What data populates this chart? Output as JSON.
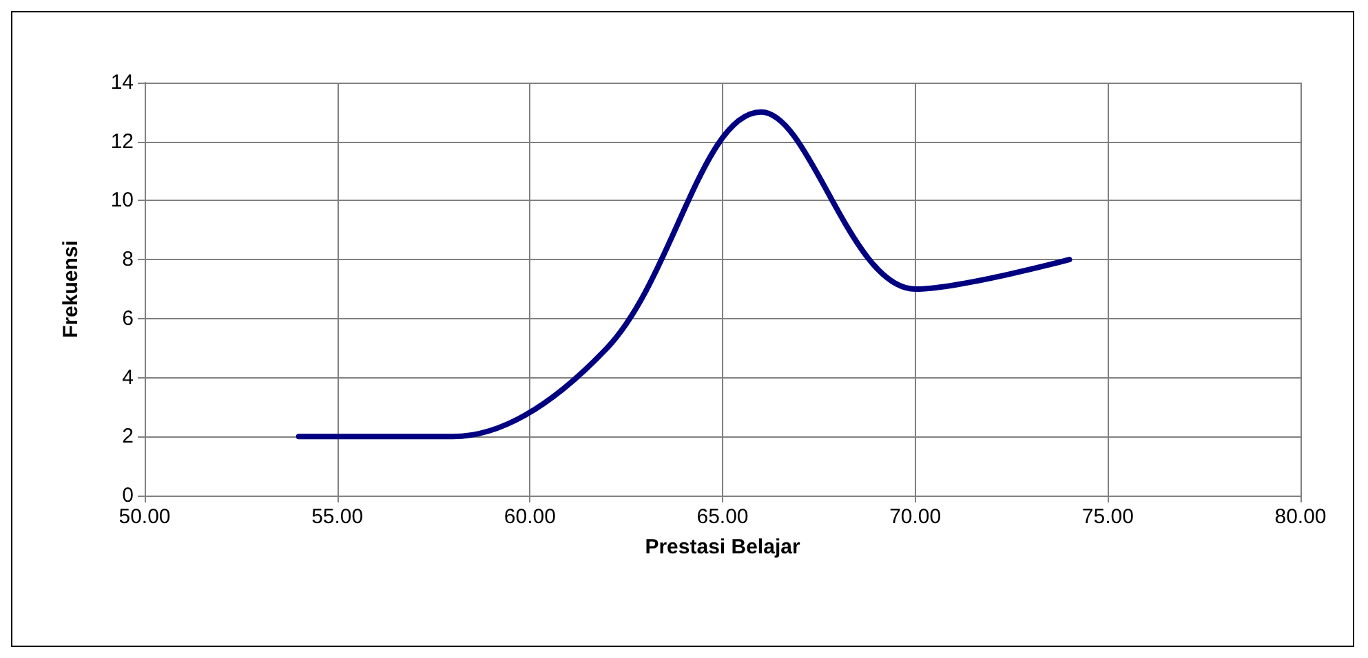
{
  "chart_data": {
    "type": "line",
    "xlabel": "Prestasi Belajar",
    "ylabel": "Frekuensi",
    "x": [
      54,
      58,
      62,
      66,
      70,
      74
    ],
    "series": [
      {
        "color": "#000080",
        "values": [
          2,
          2,
          5,
          13,
          7,
          8
        ]
      }
    ],
    "xlim": [
      50,
      80
    ],
    "xticks": [
      {
        "value": 50,
        "label": "50.00"
      },
      {
        "value": 55,
        "label": "55.00"
      },
      {
        "value": 60,
        "label": "60.00"
      },
      {
        "value": 65,
        "label": "65.00"
      },
      {
        "value": 70,
        "label": "70.00"
      },
      {
        "value": 75,
        "label": "75.00"
      },
      {
        "value": 80,
        "label": "80.00"
      }
    ],
    "ylim": [
      0,
      14
    ],
    "yticks": [
      0,
      2,
      4,
      6,
      8,
      10,
      12,
      14
    ],
    "grid": true,
    "marker": "none",
    "line_style": "solid"
  }
}
